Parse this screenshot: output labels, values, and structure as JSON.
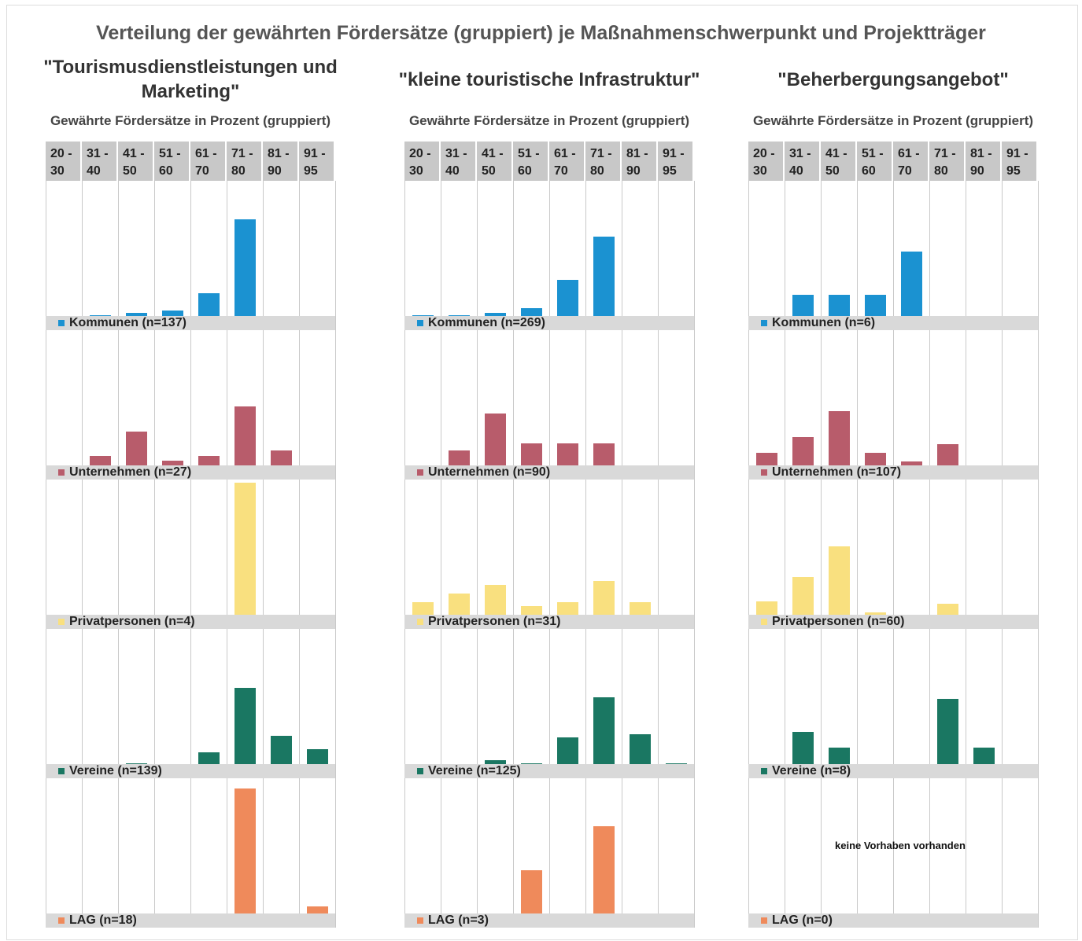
{
  "title": "Verteilung der gewährten Fördersätze (gruppiert) je Maßnahmenschwerpunkt und Projektträger",
  "chart_data": [
    {
      "type": "bar",
      "title": "\"Tourismusdienstleistungen und Marketing\"",
      "subtitle": "Gewährte Fördersätze in Prozent (gruppiert)",
      "categories": [
        "20 - 30",
        "31 - 40",
        "41 - 50",
        "51 - 60",
        "61 - 70",
        "71 - 80",
        "81 - 90",
        "91 - 95"
      ],
      "series": [
        {
          "name": "Kommunen (n=137)",
          "color": "#1b92d1",
          "values": [
            0,
            1,
            3,
            6,
            24,
            103,
            0,
            0
          ],
          "ylim": [
            0,
            144
          ]
        },
        {
          "name": "Unternehmen (n=27)",
          "color": "#b85c6b",
          "values": [
            0,
            2,
            7,
            1,
            2,
            12,
            3,
            0
          ],
          "ylim": [
            0,
            27.7
          ]
        },
        {
          "name": "Privatpersonen (n=4)",
          "color": "#f9e07f",
          "values": [
            0,
            0,
            0,
            0,
            0,
            4,
            0,
            0
          ],
          "ylim": [
            0,
            4.1
          ]
        },
        {
          "name": "Vereine (n=139)",
          "color": "#1a7762",
          "values": [
            0,
            0,
            1,
            0,
            12,
            80,
            30,
            16
          ],
          "ylim": [
            0,
            142
          ]
        },
        {
          "name": "LAG (n=18)",
          "color": "#ef8a5b",
          "values": [
            0,
            0,
            0,
            0,
            0,
            17,
            0,
            1
          ],
          "ylim": [
            0,
            18.4
          ]
        }
      ]
    },
    {
      "type": "bar",
      "title": "\"kleine touristische Infrastruktur\"",
      "subtitle": "Gewährte Fördersätze in Prozent (gruppiert)",
      "categories": [
        "20 - 30",
        "31 - 40",
        "41 - 50",
        "51 - 60",
        "61 - 70",
        "71 - 80",
        "81 - 90",
        "91 - 95"
      ],
      "series": [
        {
          "name": "Kommunen (n=269)",
          "color": "#1b92d1",
          "values": [
            2,
            2,
            6,
            16,
            76,
            167,
            0,
            0
          ],
          "ylim": [
            0,
            284
          ]
        },
        {
          "name": "Unternehmen (n=90)",
          "color": "#b85c6b",
          "values": [
            0,
            10,
            35,
            15,
            15,
            15,
            0,
            0
          ],
          "ylim": [
            0,
            91
          ]
        },
        {
          "name": "Privatpersonen (n=31)",
          "color": "#f9e07f",
          "values": [
            3,
            5,
            7,
            2,
            3,
            8,
            3,
            0
          ],
          "ylim": [
            0,
            32
          ]
        },
        {
          "name": "Vereine (n=125)",
          "color": "#1a7762",
          "values": [
            0,
            0,
            4,
            1,
            26,
            64,
            29,
            1
          ],
          "ylim": [
            0,
            130
          ]
        },
        {
          "name": "LAG (n=3)",
          "color": "#ef8a5b",
          "values": [
            0,
            0,
            0,
            1,
            0,
            2,
            0,
            0
          ],
          "ylim": [
            0,
            3.1
          ]
        }
      ]
    },
    {
      "type": "bar",
      "title": "\"Beherbergungsangebot\"",
      "subtitle": "Gewährte Fördersätze in Prozent (gruppiert)",
      "categories": [
        "20 - 30",
        "31 - 40",
        "41 - 50",
        "51 - 60",
        "61 - 70",
        "71 - 80",
        "81 - 90",
        "91 - 95"
      ],
      "series": [
        {
          "name": "Kommunen (n=6)",
          "color": "#1b92d1",
          "values": [
            0,
            1,
            1,
            1,
            3,
            0,
            0,
            0
          ],
          "ylim": [
            0,
            6.3
          ]
        },
        {
          "name": "Unternehmen (n=107)",
          "color": "#b85c6b",
          "values": [
            10,
            23,
            44,
            10,
            3,
            17,
            0,
            0
          ],
          "ylim": [
            0,
            109
          ]
        },
        {
          "name": "Privatpersonen (n=60)",
          "color": "#f9e07f",
          "values": [
            6,
            17,
            31,
            1,
            0,
            5,
            0,
            0
          ],
          "ylim": [
            0,
            61
          ]
        },
        {
          "name": "Vereine (n=8)",
          "color": "#1a7762",
          "values": [
            0,
            2,
            1,
            0,
            0,
            4,
            1,
            0
          ],
          "ylim": [
            0,
            8.3
          ]
        },
        {
          "name": "LAG (n=0)",
          "color": "#ef8a5b",
          "values": [
            0,
            0,
            0,
            0,
            0,
            0,
            0,
            0
          ],
          "ylim": [
            0,
            1
          ],
          "annotation": "keine Vorhaben vorhanden"
        }
      ]
    }
  ]
}
